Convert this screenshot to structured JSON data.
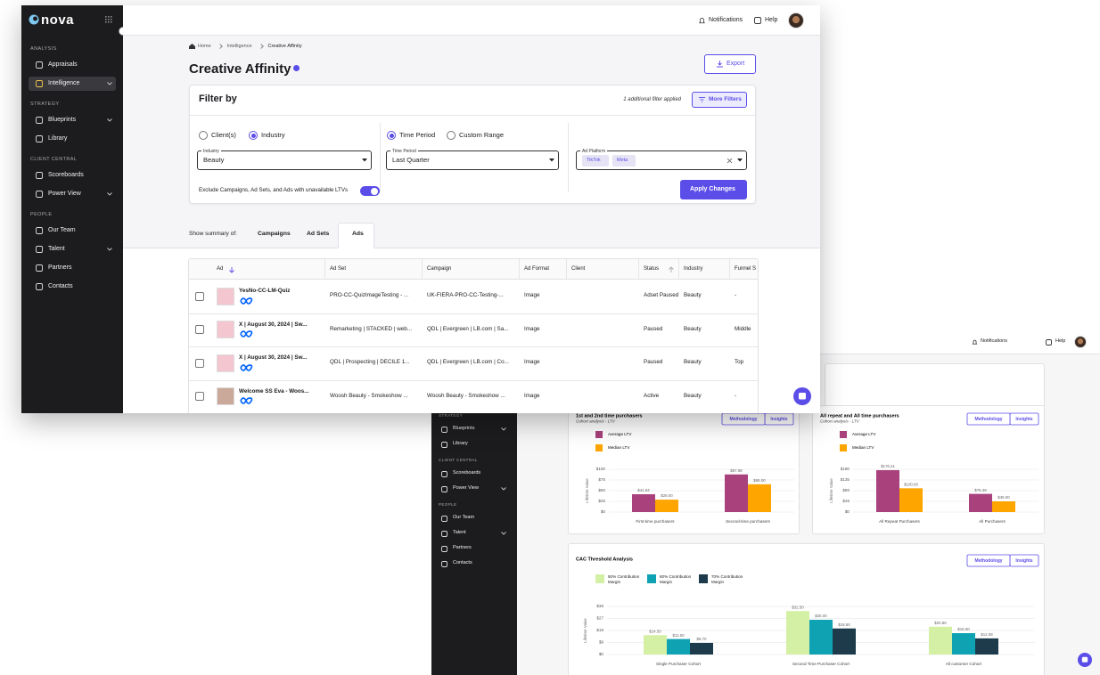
{
  "front": {
    "logo": "nova",
    "sidebar": [
      {
        "title": "ANALYSIS",
        "items": [
          "Appraisals",
          "Intelligence"
        ]
      },
      {
        "title": "STRATEGY",
        "items": [
          "Blueprints",
          "Library"
        ]
      },
      {
        "title": "CLIENT CENTRAL",
        "items": [
          "Scoreboards",
          "Power View"
        ]
      },
      {
        "title": "PEOPLE",
        "items": [
          "Our Team",
          "Talent",
          "Partners",
          "Contacts"
        ]
      }
    ],
    "topbar": {
      "notifications": "Notifications",
      "help": "Help"
    },
    "breadcrumb": [
      "Home",
      "Intelligence",
      "Creative Affinity"
    ],
    "title": "Creative Affinity",
    "export": "Export",
    "filter": {
      "title": "Filter by",
      "applied": "1 additional filter applied",
      "more": "More Filters",
      "scope_options": [
        "Client(s)",
        "Industry"
      ],
      "industry_label": "Industry",
      "industry": "Beauty",
      "period_options": [
        "Time Period",
        "Custom Range"
      ],
      "period_label": "Time Period",
      "period": "Last Quarter",
      "platform_label": "Ad Platform",
      "platforms": [
        "TikTok",
        "Meta"
      ],
      "exclude": "Exclude Campaigns, Ad Sets, and Ads with unavailable LTVs",
      "apply": "Apply Changes"
    },
    "summary": {
      "label": "Show summary of:",
      "tabs": [
        "Campaigns",
        "Ad Sets",
        "Ads"
      ]
    },
    "table": {
      "headers": [
        "Ad",
        "Ad Set",
        "Campaign",
        "Ad Format",
        "Client",
        "Status",
        "Industry",
        "Funnel S"
      ],
      "rows": [
        [
          "YesNo-CC-LM-Quiz",
          "PRO-CC-QuizImageTesting - ...",
          "UK-FIERA-PRO-CC-Testing-...",
          "Image",
          null,
          "Adset Paused",
          "Beauty",
          "-"
        ],
        [
          "X | August 30, 2024 | Sw...",
          "Remarketing | STACKED | web...",
          "QDL | Evergreen | LB.com | Sa...",
          "Image",
          null,
          "Paused",
          "Beauty",
          "Middle"
        ],
        [
          "X | August 30, 2024 | Sw...",
          "QDL | Prospecting | DECILE 1...",
          "QDL | Evergreen | LB.com | Co...",
          "Image",
          null,
          "Paused",
          "Beauty",
          "Top"
        ],
        [
          "Welcome SS Eva - Woos...",
          "Woosh Beauty - Smokeshow ...",
          "Woosh Beauty - Smokeshow ...",
          "Image",
          null,
          "Active",
          "Beauty",
          "-"
        ]
      ]
    }
  },
  "back": {
    "topbar": {
      "notifications": "Notifications",
      "help": "Help"
    },
    "sidebar": [
      {
        "title": "STRATEGY",
        "items": [
          "Blueprints",
          "Library"
        ]
      },
      {
        "title": "CLIENT CENTRAL",
        "items": [
          "Scoreboards",
          "Power View"
        ]
      },
      {
        "title": "PEOPLE",
        "items": [
          "Our Team",
          "Talent",
          "Partners",
          "Contacts"
        ]
      }
    ]
  },
  "chart_data": [
    {
      "type": "bar",
      "title": "1st and 2nd time purchasers",
      "subtitle": "Cohort analysis - LTV",
      "buttons": [
        "Methodology",
        "Insights"
      ],
      "y_label": "Lifetime Value",
      "categories": [
        "First-time purchasers",
        "Second-time purchasers"
      ],
      "series": [
        {
          "name": "Average LTV",
          "color": "#a8417c",
          "values": [
            41.64,
            87.98
          ],
          "value_labels": [
            "$41.64",
            "$87.98"
          ]
        },
        {
          "name": "Median LTV",
          "color": "#ffa500",
          "values": [
            29.0,
            65.0
          ],
          "value_labels": [
            "$29.00",
            "$65.00"
          ]
        }
      ],
      "ylim": [
        0,
        100
      ],
      "yticks": [
        {
          "value": 0,
          "label": "$0"
        },
        {
          "value": 25,
          "label": "$25"
        },
        {
          "value": 50,
          "label": "$50"
        },
        {
          "value": 75,
          "label": "$75"
        },
        {
          "value": 100,
          "label": "$100"
        }
      ],
      "grid": true
    },
    {
      "type": "bar",
      "title": "All repeat and All time purchasers",
      "subtitle": "Cohort analysis - LTV",
      "buttons": [
        "Methodology",
        "Insights"
      ],
      "y_label": "Lifetime Value",
      "categories": [
        "All Repeat Purchasers",
        "All Purchasers"
      ],
      "series": [
        {
          "name": "Average LTV",
          "color": "#a8417c",
          "values": [
            176.41,
            76.49
          ],
          "value_labels": [
            "$176.41",
            "$76.49"
          ]
        },
        {
          "name": "Median LTV",
          "color": "#ffa500",
          "values": [
            100.0,
            45.0
          ],
          "value_labels": [
            "$100.00",
            "$45.00"
          ]
        }
      ],
      "ylim": [
        0,
        180
      ],
      "yticks": [
        {
          "value": 0,
          "label": "$0"
        },
        {
          "value": 45,
          "label": "$45"
        },
        {
          "value": 90,
          "label": "$90"
        },
        {
          "value": 135,
          "label": "$135"
        },
        {
          "value": 180,
          "label": "$180"
        }
      ],
      "grid": true
    },
    {
      "type": "bar",
      "title": "CAC Threshold Analysis",
      "buttons": [
        "Methodology",
        "Insights"
      ],
      "y_label": "Lifetime Value",
      "categories": [
        "Single Purchaser Cohort",
        "Second Time Purchaser Cohort",
        "All customer Cohort"
      ],
      "series": [
        {
          "name": "50% Contribution Margin",
          "color": "#d4f0a4",
          "values": [
            14.5,
            32.5,
            20.8
          ],
          "value_labels": [
            "$14.50",
            "$32.50",
            "$20.80"
          ]
        },
        {
          "name": "60% Contribution Margin",
          "color": "#0ea2b2",
          "values": [
            11.6,
            26.0,
            16.0
          ],
          "value_labels": [
            "$11.60",
            "$26.00",
            "$16.00"
          ]
        },
        {
          "name": "70% Contribution Margin",
          "color": "#1e3b4b",
          "values": [
            8.7,
            19.5,
            12.08
          ],
          "value_labels": [
            "$8.70",
            "$19.50",
            "$12.08"
          ]
        }
      ],
      "ylim": [
        0,
        36
      ],
      "yticks": [
        {
          "value": 0,
          "label": "$0"
        },
        {
          "value": 9,
          "label": "$9"
        },
        {
          "value": 18,
          "label": "$18"
        },
        {
          "value": 27,
          "label": "$27"
        },
        {
          "value": 36,
          "label": "$36"
        }
      ],
      "grid": true
    }
  ]
}
